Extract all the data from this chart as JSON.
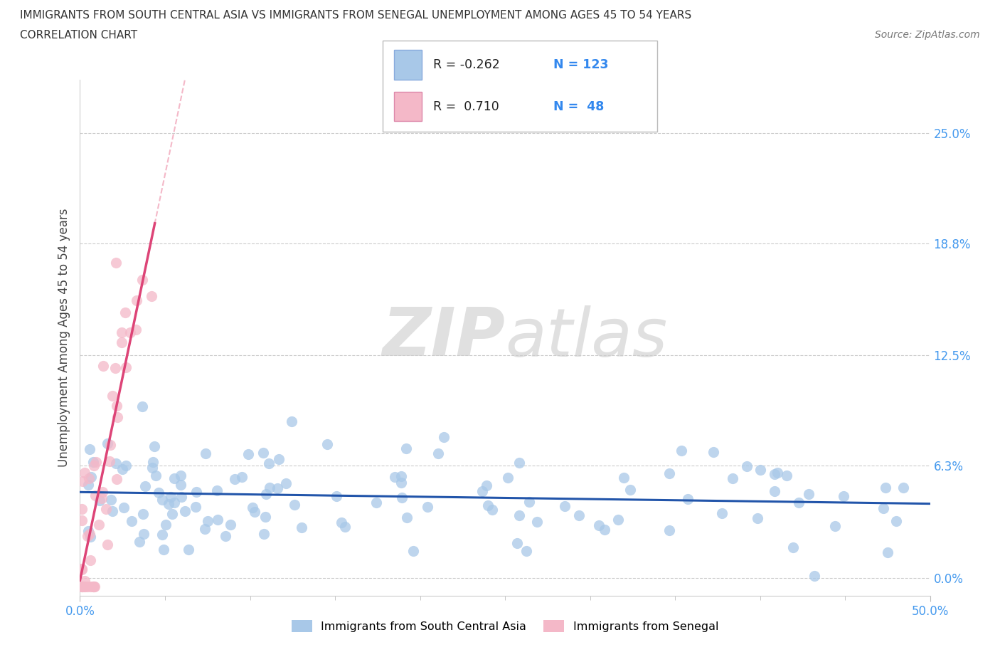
{
  "title_line1": "IMMIGRANTS FROM SOUTH CENTRAL ASIA VS IMMIGRANTS FROM SENEGAL UNEMPLOYMENT AMONG AGES 45 TO 54 YEARS",
  "title_line2": "CORRELATION CHART",
  "source": "Source: ZipAtlas.com",
  "ylabel": "Unemployment Among Ages 45 to 54 years",
  "xlim": [
    0.0,
    0.5
  ],
  "ylim": [
    -0.01,
    0.28
  ],
  "ytick_values": [
    0.0,
    0.063,
    0.125,
    0.188,
    0.25
  ],
  "ytick_labels": [
    "0.0%",
    "6.3%",
    "12.5%",
    "18.8%",
    "25.0%"
  ],
  "xtick_values": [
    0.0,
    0.5
  ],
  "xtick_labels": [
    "0.0%",
    "50.0%"
  ],
  "grid_color": "#cccccc",
  "watermark_zip": "ZIP",
  "watermark_atlas": "atlas",
  "legend_label1": "Immigrants from South Central Asia",
  "legend_label2": "Immigrants from Senegal",
  "r1": "-0.262",
  "n1": "123",
  "r2": "0.710",
  "n2": "48",
  "color_blue": "#a8c8e8",
  "color_pink": "#f4b8c8",
  "trendline_blue": "#2255aa",
  "trendline_pink": "#dd4477",
  "trendline_pink_dashed": "#f4b8c8"
}
